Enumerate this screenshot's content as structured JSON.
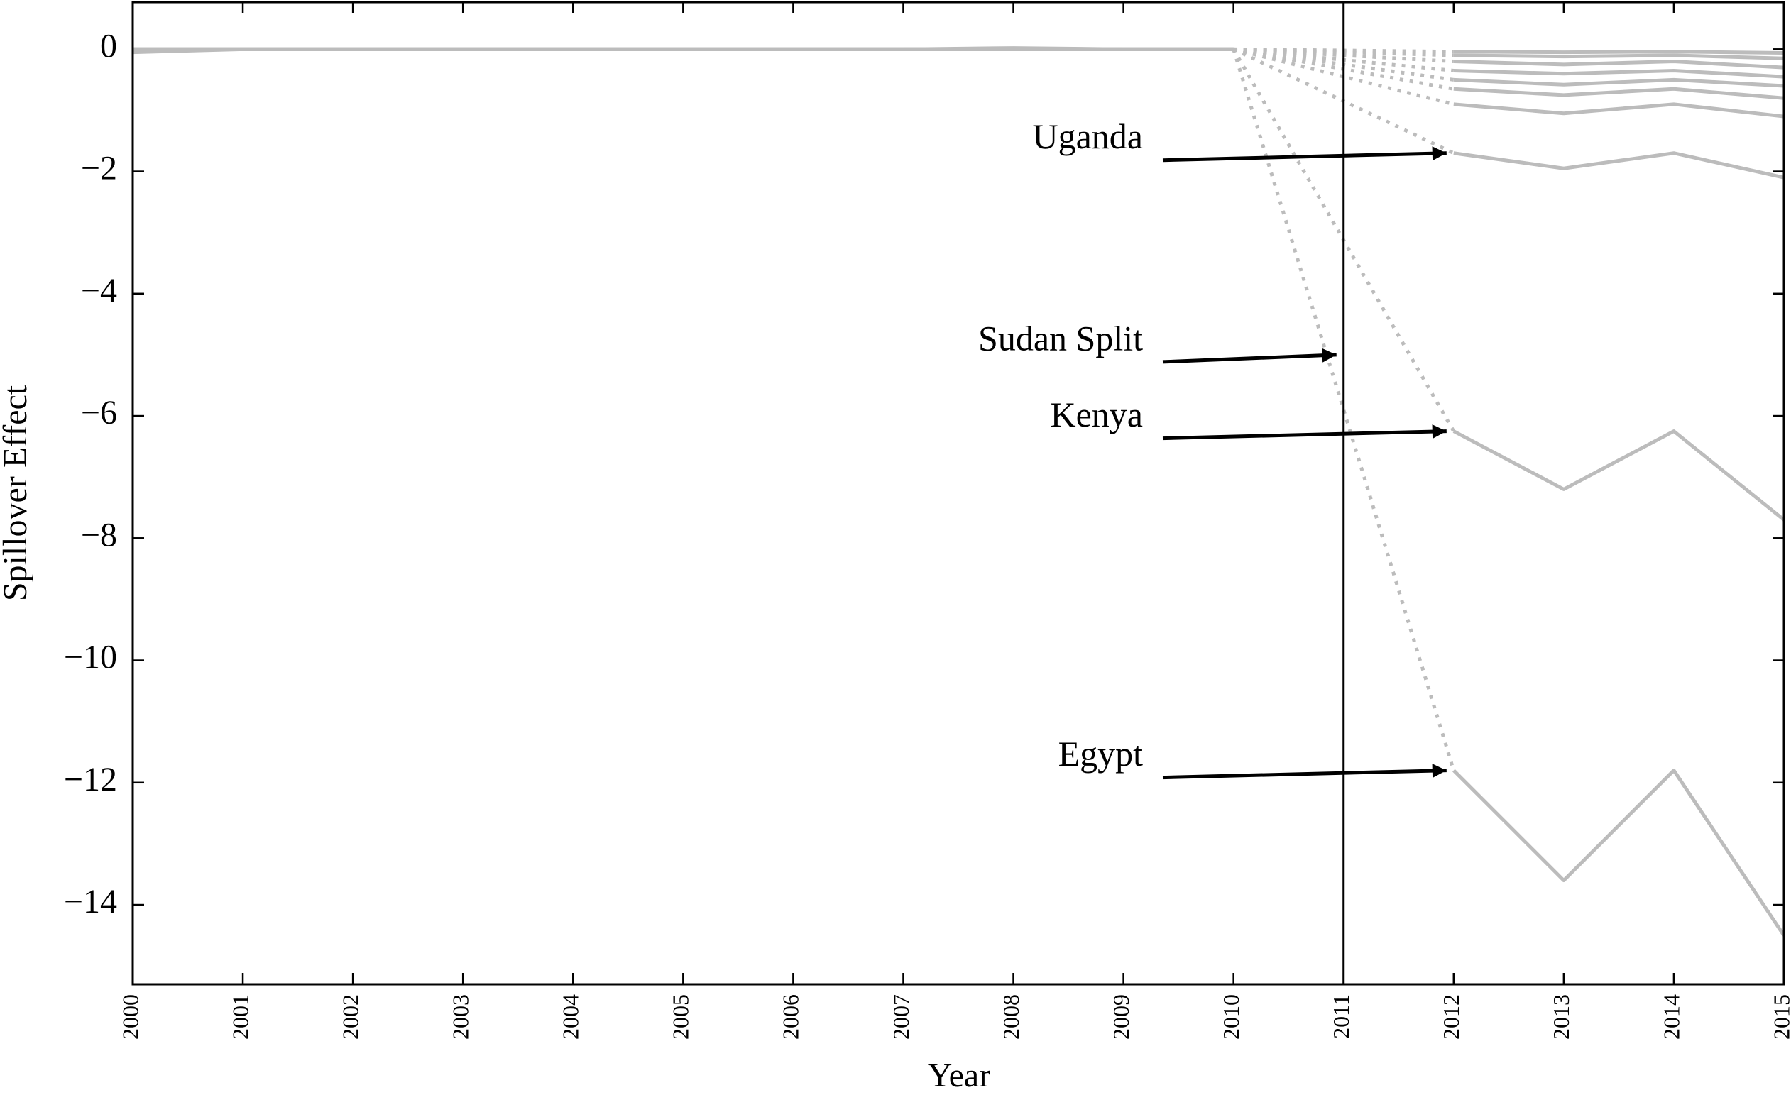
{
  "chart_data": {
    "type": "line",
    "xlabel": "Year",
    "ylabel": "Spillover Effect",
    "x": [
      2000,
      2001,
      2002,
      2003,
      2004,
      2005,
      2006,
      2007,
      2008,
      2009,
      2010,
      2011,
      2012,
      2013,
      2014,
      2015
    ],
    "series": [
      {
        "color": "#bcbcbc",
        "values": [
          -0.05,
          0,
          0,
          0,
          0,
          0,
          0,
          0,
          0.02,
          0,
          0,
          null,
          -11.8,
          -13.6,
          -11.8,
          -14.5
        ]
      },
      {
        "color": "#bcbcbc",
        "values": [
          0,
          0,
          0,
          0,
          0,
          0,
          0,
          0,
          0,
          0,
          0,
          null,
          -6.25,
          -7.2,
          -6.25,
          -7.7
        ]
      },
      {
        "color": "#bcbcbc",
        "values": [
          0,
          0,
          0,
          0,
          0,
          0,
          0,
          0,
          0,
          0,
          0,
          null,
          -1.7,
          -1.95,
          -1.7,
          -2.1
        ]
      },
      {
        "color": "#bcbcbc",
        "values": [
          0,
          0,
          0,
          0,
          0,
          0,
          0,
          0,
          0,
          0,
          0,
          null,
          -0.9,
          -1.05,
          -0.9,
          -1.1
        ]
      },
      {
        "color": "#bcbcbc",
        "values": [
          0,
          0,
          0,
          0,
          0,
          0,
          0,
          0,
          0,
          0,
          0,
          null,
          -0.65,
          -0.75,
          -0.65,
          -0.8
        ]
      },
      {
        "color": "#bcbcbc",
        "values": [
          0,
          0,
          0,
          0,
          0,
          0,
          0,
          0,
          0,
          0,
          0,
          null,
          -0.5,
          -0.58,
          -0.5,
          -0.6
        ]
      },
      {
        "color": "#bcbcbc",
        "values": [
          0,
          0,
          0,
          0,
          0,
          0,
          0,
          0,
          0,
          0,
          0,
          null,
          -0.35,
          -0.4,
          -0.35,
          -0.45
        ]
      },
      {
        "color": "#bcbcbc",
        "values": [
          0,
          0,
          0,
          0,
          0,
          0,
          0,
          0,
          0,
          0,
          0,
          null,
          -0.2,
          -0.25,
          -0.2,
          -0.3
        ]
      },
      {
        "color": "#bcbcbc",
        "values": [
          0,
          0,
          0,
          0,
          0,
          0,
          0,
          0,
          0,
          0,
          0,
          null,
          -0.1,
          -0.12,
          -0.1,
          -0.15
        ]
      },
      {
        "color": "#bcbcbc",
        "values": [
          0,
          0,
          0,
          0,
          0,
          0,
          0,
          0,
          0,
          0,
          0,
          null,
          -0.04,
          -0.05,
          -0.04,
          -0.06
        ]
      }
    ],
    "vline": 2011,
    "annotations": [
      {
        "text": "Uganda",
        "x": 2012,
        "y": -1.7
      },
      {
        "text": "Sudan Split",
        "x": 2011,
        "y": -5
      },
      {
        "text": "Kenya",
        "x": 2012,
        "y": -6.25
      },
      {
        "text": "Egypt",
        "x": 2012,
        "y": -11.8
      }
    ],
    "xlim": [
      2000,
      2015
    ],
    "ylim": [
      -15.3,
      0.77
    ],
    "xticks": [
      2000,
      2001,
      2002,
      2003,
      2004,
      2005,
      2006,
      2007,
      2008,
      2009,
      2010,
      2011,
      2012,
      2013,
      2014,
      2015
    ],
    "yticks": [
      0,
      {
        "value": -2,
        "label": "−2"
      },
      {
        "value": -4,
        "label": "−4"
      },
      {
        "value": -6,
        "label": "−6"
      },
      {
        "value": -8,
        "label": "−8"
      },
      {
        "value": -10,
        "label": "−10"
      },
      {
        "value": -12,
        "label": "−12"
      },
      {
        "value": -14,
        "label": "−14"
      }
    ]
  }
}
